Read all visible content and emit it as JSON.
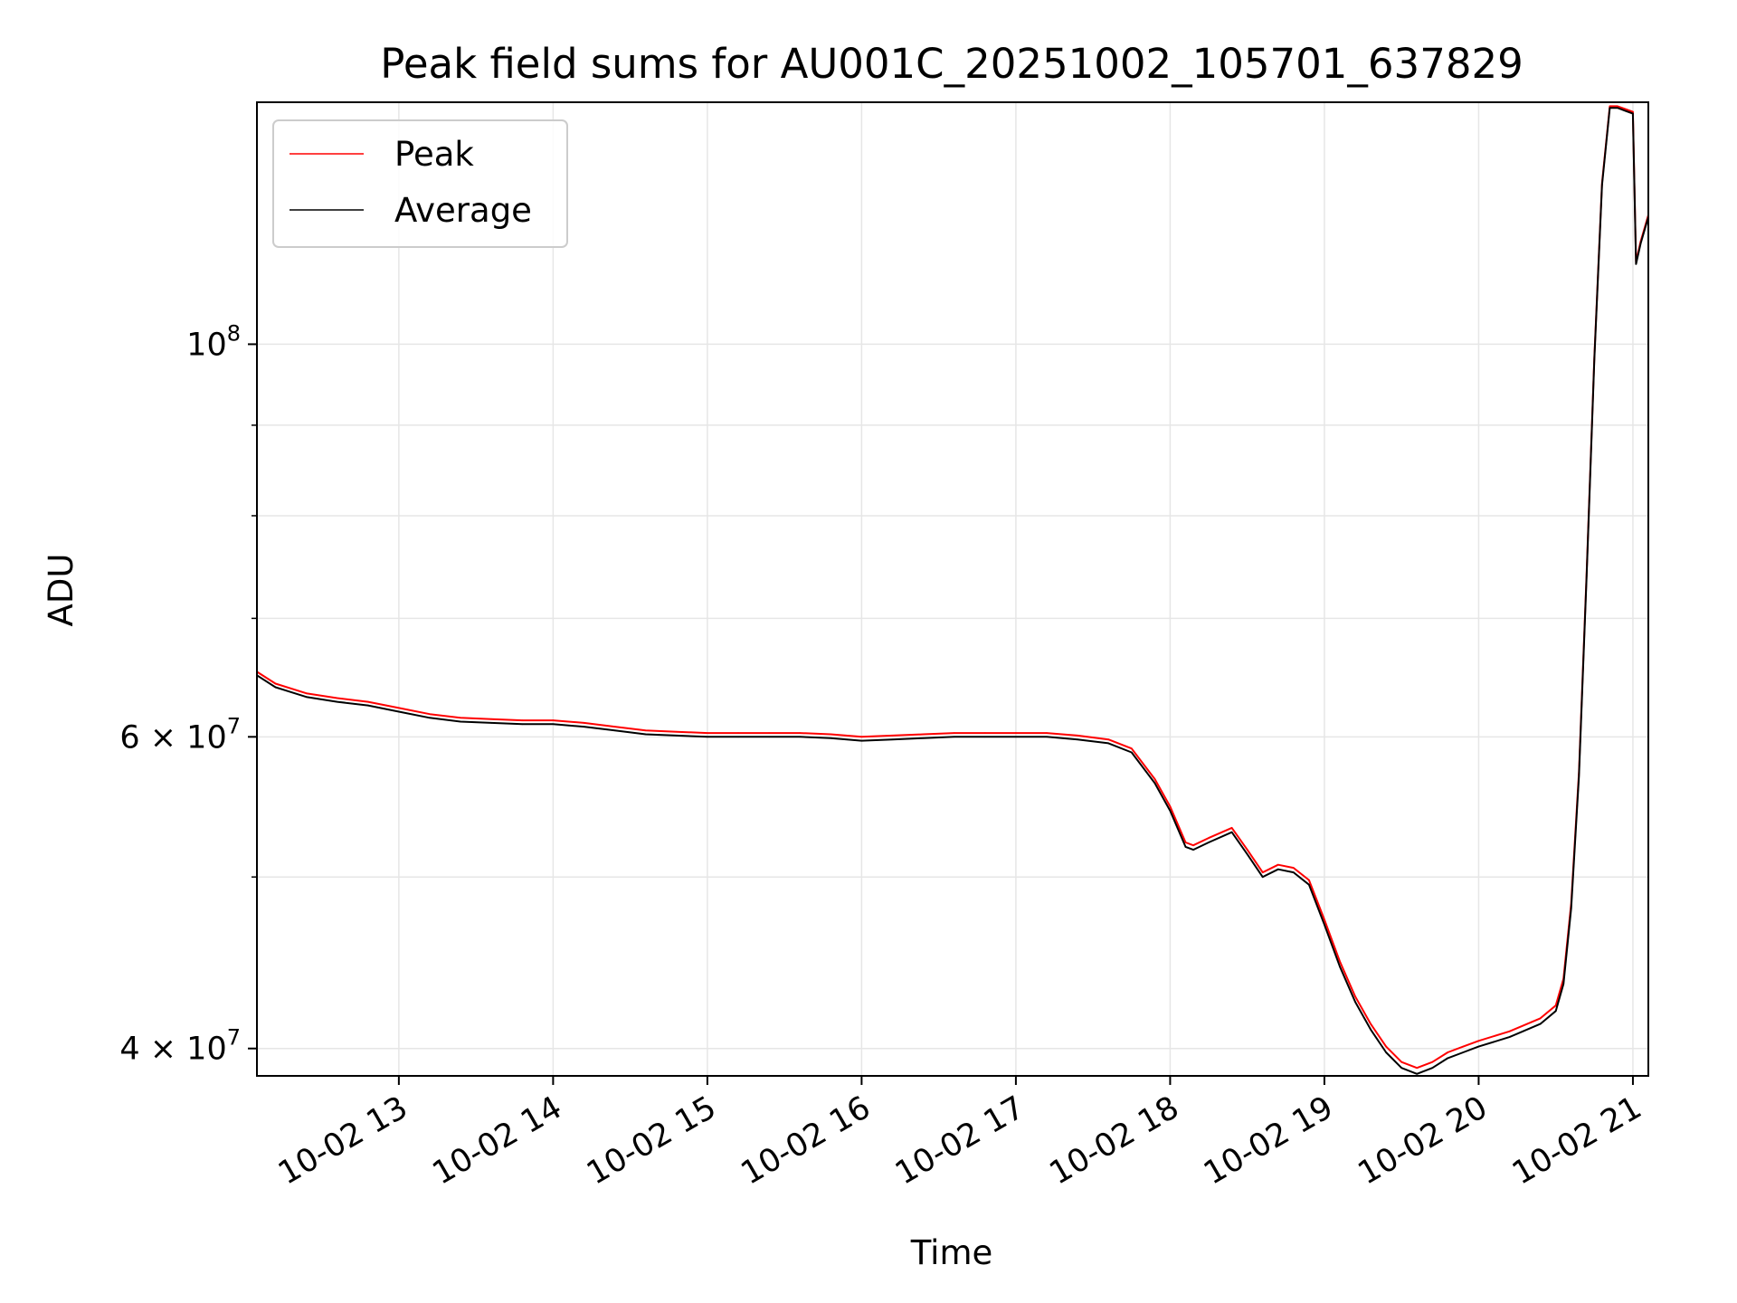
{
  "chart_data": {
    "type": "line",
    "title": "Peak field sums for AU001C_20251002_105701_637829",
    "xlabel": "Time",
    "ylabel": "ADU",
    "y_scale": "log",
    "ylim": [
      38600000,
      137000000
    ],
    "xlim_hours": [
      12.08,
      21.1
    ],
    "x_ticks": [
      {
        "hour": 13,
        "label": "10-02 13"
      },
      {
        "hour": 14,
        "label": "10-02 14"
      },
      {
        "hour": 15,
        "label": "10-02 15"
      },
      {
        "hour": 16,
        "label": "10-02 16"
      },
      {
        "hour": 17,
        "label": "10-02 17"
      },
      {
        "hour": 18,
        "label": "10-02 18"
      },
      {
        "hour": 19,
        "label": "10-02 19"
      },
      {
        "hour": 20,
        "label": "10-02 20"
      },
      {
        "hour": 21,
        "label": "10-02 21"
      }
    ],
    "y_major_ticks": [
      {
        "value": 100000000,
        "base": "10",
        "exp": "8"
      },
      {
        "value": 60000000,
        "base": "6 × 10",
        "exp": "7"
      },
      {
        "value": 40000000,
        "base": "4 × 10",
        "exp": "7"
      }
    ],
    "y_minor_ticks": [
      50000000,
      70000000,
      80000000,
      90000000
    ],
    "grid": true,
    "legend_position": "upper-left",
    "colors": {
      "peak": "#ff0000",
      "average": "#000000",
      "grid": "#e6e6e6"
    },
    "series": [
      {
        "name": "Average",
        "x": [
          12.08,
          12.2,
          12.4,
          12.6,
          12.8,
          13.0,
          13.2,
          13.4,
          13.6,
          13.8,
          14.0,
          14.2,
          14.4,
          14.6,
          14.8,
          15.0,
          15.2,
          15.4,
          15.6,
          15.8,
          16.0,
          16.2,
          16.4,
          16.6,
          16.8,
          17.0,
          17.2,
          17.4,
          17.6,
          17.75,
          17.9,
          18.0,
          18.1,
          18.15,
          18.25,
          18.4,
          18.5,
          18.6,
          18.7,
          18.8,
          18.9,
          19.0,
          19.1,
          19.2,
          19.3,
          19.4,
          19.5,
          19.6,
          19.7,
          19.8,
          19.9,
          20.0,
          20.2,
          20.4,
          20.5,
          20.55,
          20.6,
          20.65,
          20.7,
          20.75,
          20.8,
          20.85,
          20.9,
          20.95,
          21.0,
          21.02,
          21.05,
          21.1
        ],
        "values": [
          65000000,
          64000000,
          63200000,
          62800000,
          62500000,
          62000000,
          61500000,
          61200000,
          61100000,
          61000000,
          61000000,
          60800000,
          60500000,
          60200000,
          60100000,
          60000000,
          60000000,
          60000000,
          60000000,
          59900000,
          59700000,
          59800000,
          59900000,
          60000000,
          60000000,
          60000000,
          60000000,
          59800000,
          59500000,
          58800000,
          56500000,
          54500000,
          52000000,
          51800000,
          52300000,
          53000000,
          51500000,
          50000000,
          50500000,
          50300000,
          49500000,
          47000000,
          44500000,
          42500000,
          41000000,
          39800000,
          39000000,
          38700000,
          39000000,
          39500000,
          39800000,
          40100000,
          40600000,
          41300000,
          42000000,
          43500000,
          48000000,
          57000000,
          74000000,
          98000000,
          123000000,
          136000000,
          136000000,
          135500000,
          135000000,
          111000000,
          114000000,
          118000000
        ]
      },
      {
        "name": "Peak",
        "x": [
          12.08,
          12.2,
          12.4,
          12.6,
          12.8,
          13.0,
          13.2,
          13.4,
          13.6,
          13.8,
          14.0,
          14.2,
          14.4,
          14.6,
          14.8,
          15.0,
          15.2,
          15.4,
          15.6,
          15.8,
          16.0,
          16.2,
          16.4,
          16.6,
          16.8,
          17.0,
          17.2,
          17.4,
          17.6,
          17.75,
          17.9,
          18.0,
          18.1,
          18.15,
          18.25,
          18.4,
          18.5,
          18.6,
          18.7,
          18.8,
          18.9,
          19.0,
          19.1,
          19.2,
          19.3,
          19.4,
          19.5,
          19.6,
          19.7,
          19.8,
          19.9,
          20.0,
          20.2,
          20.4,
          20.5,
          20.55,
          20.6,
          20.65,
          20.7,
          20.75,
          20.8,
          20.85,
          20.9,
          20.95,
          21.0,
          21.02,
          21.05,
          21.1
        ],
        "values": [
          65300000,
          64300000,
          63500000,
          63100000,
          62800000,
          62300000,
          61800000,
          61500000,
          61400000,
          61300000,
          61300000,
          61100000,
          60800000,
          60500000,
          60400000,
          60300000,
          60300000,
          60300000,
          60300000,
          60200000,
          60000000,
          60100000,
          60200000,
          60300000,
          60300000,
          60300000,
          60300000,
          60100000,
          59800000,
          59100000,
          56800000,
          54800000,
          52300000,
          52100000,
          52600000,
          53300000,
          51800000,
          50300000,
          50800000,
          50600000,
          49800000,
          47300000,
          44800000,
          42800000,
          41300000,
          40100000,
          39300000,
          39000000,
          39300000,
          39800000,
          40100000,
          40400000,
          40900000,
          41600000,
          42300000,
          43800000,
          48300000,
          57300000,
          74300000,
          98300000,
          123300000,
          136300000,
          136300000,
          135800000,
          135300000,
          111300000,
          114300000,
          118300000
        ]
      }
    ]
  }
}
